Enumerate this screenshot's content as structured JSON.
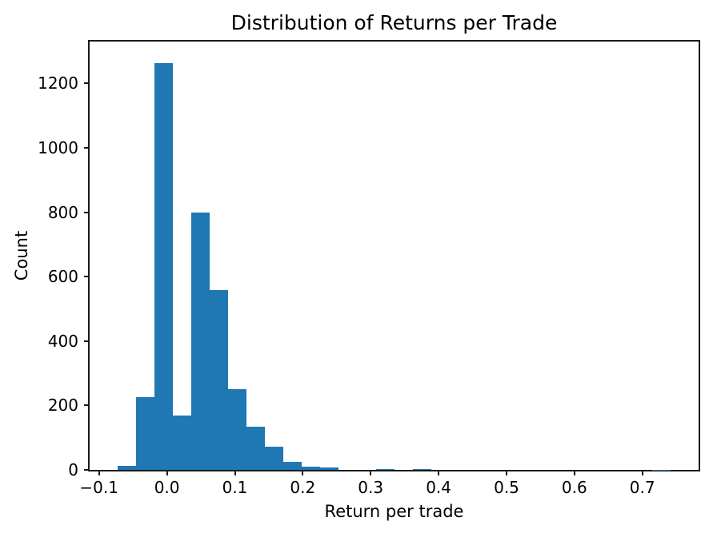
{
  "figure": {
    "background": "#ffffff",
    "text_color": "#000000",
    "spine_color": "#1a1a1a"
  },
  "chart_data": {
    "type": "bar",
    "subtype": "histogram",
    "title": "Distribution of Returns per Trade",
    "xlabel": "Return per trade",
    "ylabel": "Count",
    "bar_color": "#1f77b4",
    "grid": false,
    "legend_position": "none",
    "xlim": [
      -0.1138,
      0.7828
    ],
    "ylim": [
      0,
      1330
    ],
    "bin_edges": [
      -0.073,
      -0.0458,
      -0.0187,
      0.0085,
      0.0357,
      0.0629,
      0.09,
      0.1172,
      0.1444,
      0.1715,
      0.1987,
      0.2259,
      0.253,
      0.2802,
      0.3074,
      0.3346,
      0.3617,
      0.3889,
      0.4161,
      0.4432,
      0.4704,
      0.4976,
      0.5247,
      0.5519,
      0.5791,
      0.6063,
      0.6334,
      0.6606,
      0.6878,
      0.7149,
      0.7421
    ],
    "counts": [
      13,
      227,
      1262,
      170,
      800,
      558,
      251,
      134,
      73,
      26,
      9,
      8,
      0,
      0,
      2,
      0,
      3,
      0,
      0,
      0,
      0,
      0,
      0,
      0,
      0,
      0,
      0,
      0,
      0,
      1
    ],
    "xticks": [
      {
        "value": -0.1,
        "label": "−0.1"
      },
      {
        "value": 0.0,
        "label": "0.0"
      },
      {
        "value": 0.1,
        "label": "0.1"
      },
      {
        "value": 0.2,
        "label": "0.2"
      },
      {
        "value": 0.3,
        "label": "0.3"
      },
      {
        "value": 0.4,
        "label": "0.4"
      },
      {
        "value": 0.5,
        "label": "0.5"
      },
      {
        "value": 0.6,
        "label": "0.6"
      },
      {
        "value": 0.7,
        "label": "0.7"
      }
    ],
    "yticks": [
      {
        "value": 0,
        "label": "0"
      },
      {
        "value": 200,
        "label": "200"
      },
      {
        "value": 400,
        "label": "400"
      },
      {
        "value": 600,
        "label": "600"
      },
      {
        "value": 800,
        "label": "800"
      },
      {
        "value": 1000,
        "label": "1000"
      },
      {
        "value": 1200,
        "label": "1200"
      }
    ]
  }
}
